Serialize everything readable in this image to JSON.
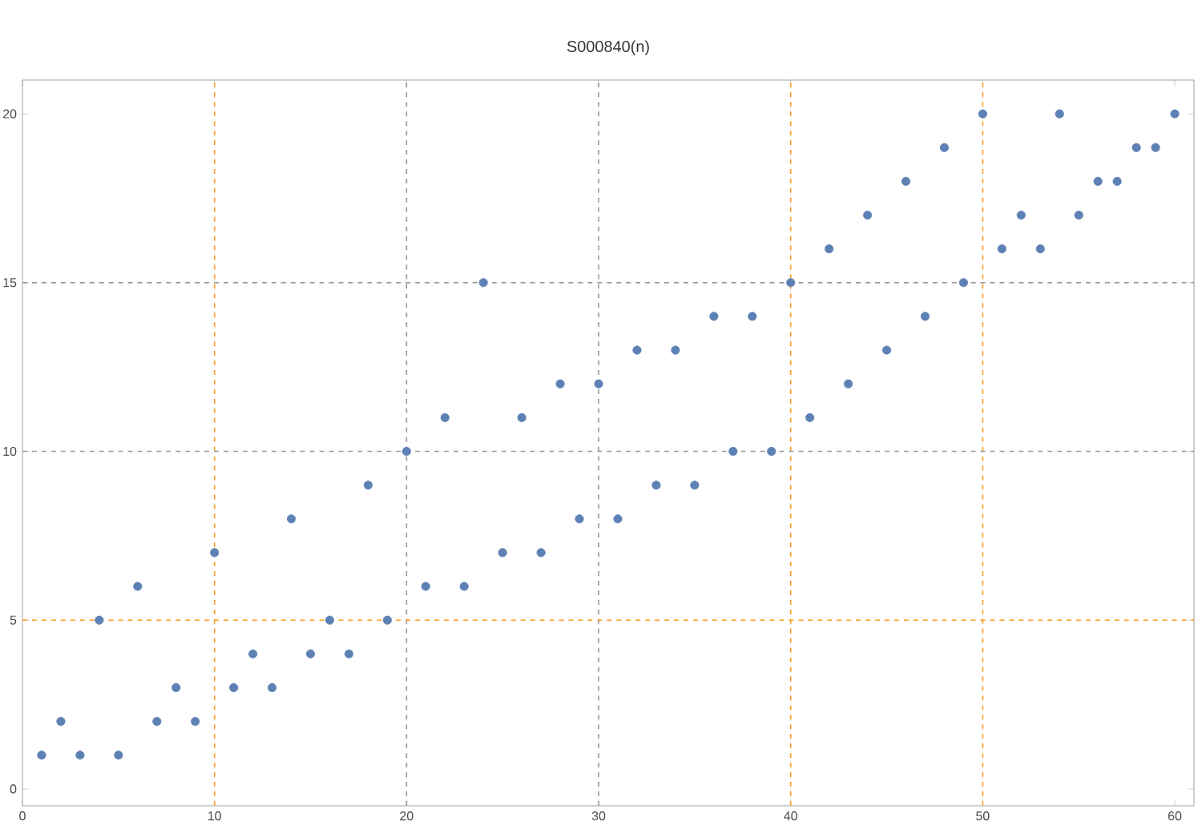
{
  "chart_data": {
    "type": "scatter",
    "title": "S000840(n)",
    "x": [
      1,
      2,
      3,
      4,
      5,
      6,
      7,
      8,
      9,
      10,
      11,
      12,
      13,
      14,
      15,
      16,
      17,
      18,
      19,
      20,
      21,
      22,
      23,
      24,
      25,
      26,
      27,
      28,
      29,
      30,
      31,
      32,
      33,
      34,
      35,
      36,
      37,
      38,
      39,
      40,
      41,
      42,
      43,
      44,
      45,
      46,
      47,
      48,
      49,
      50,
      51,
      52,
      53,
      54,
      55,
      56,
      57,
      58,
      59,
      60
    ],
    "series": [
      {
        "color": "#5e81b5",
        "values": [
          1,
          2,
          1,
          5,
          1,
          6,
          2,
          3,
          2,
          7,
          3,
          4,
          3,
          8,
          4,
          5,
          4,
          9,
          5,
          10,
          6,
          11,
          6,
          15,
          7,
          11,
          7,
          12,
          8,
          12,
          8,
          13,
          9,
          13,
          9,
          14,
          10,
          14,
          10,
          15,
          11,
          16,
          12,
          17,
          13,
          18,
          14,
          19,
          15,
          20,
          16,
          17,
          16,
          20,
          17,
          18,
          18,
          19,
          19,
          20
        ]
      }
    ],
    "marker": "circle",
    "xlim": [
      0,
      61
    ],
    "ylim": [
      -0.5,
      21
    ],
    "xticks": [
      0,
      10,
      20,
      30,
      40,
      50,
      60
    ],
    "yticks": [
      0,
      5,
      10,
      15,
      20
    ],
    "grid": false,
    "ref_lines": [
      {
        "axis": "x",
        "value": 10,
        "color": "#ff9a1a",
        "line_style": "dashed"
      },
      {
        "axis": "x",
        "value": 20,
        "color": "#999999",
        "line_style": "dashed"
      },
      {
        "axis": "x",
        "value": 30,
        "color": "#999999",
        "line_style": "dashed"
      },
      {
        "axis": "x",
        "value": 40,
        "color": "#ff9a1a",
        "line_style": "dashed"
      },
      {
        "axis": "x",
        "value": 50,
        "color": "#ff9a1a",
        "line_style": "dashed"
      },
      {
        "axis": "y",
        "value": 5,
        "color": "#ff9a1a",
        "line_style": "dashed"
      },
      {
        "axis": "y",
        "value": 10,
        "color": "#999999",
        "line_style": "dashed"
      },
      {
        "axis": "y",
        "value": 15,
        "color": "#999999",
        "line_style": "dashed"
      }
    ]
  }
}
